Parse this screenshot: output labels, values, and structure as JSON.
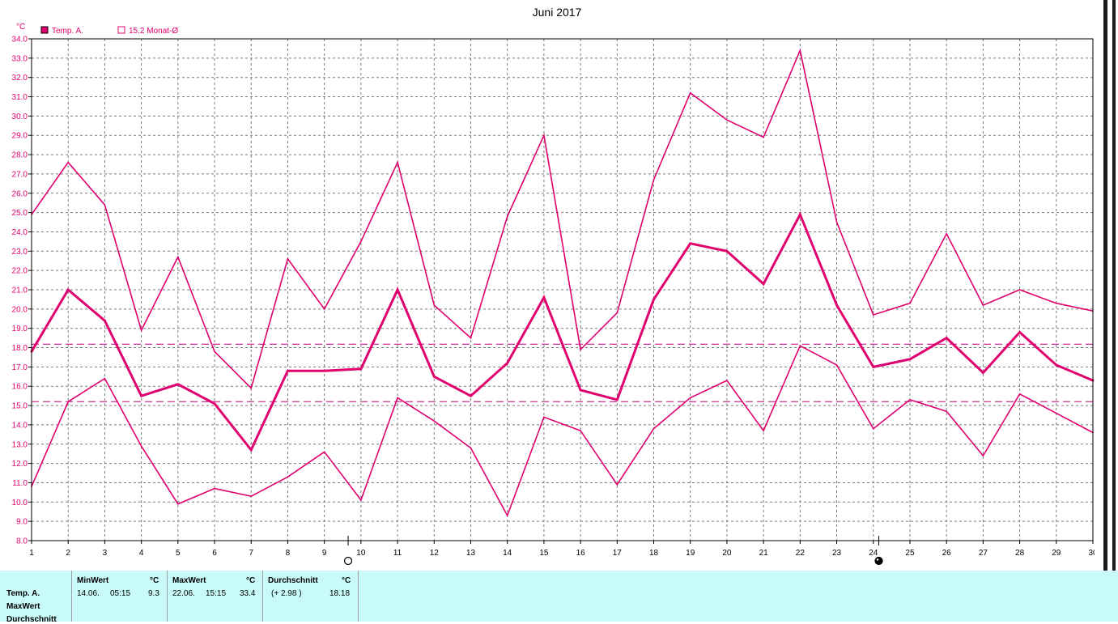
{
  "chart_data": {
    "type": "line",
    "title": "Juni 2017",
    "ylabel": "°C",
    "xlim": [
      1,
      30
    ],
    "ylim": [
      8.0,
      34.0
    ],
    "y_tick_step": 1.0,
    "grid": true,
    "x": [
      1,
      2,
      3,
      4,
      5,
      6,
      7,
      8,
      9,
      10,
      11,
      12,
      13,
      14,
      15,
      16,
      17,
      18,
      19,
      20,
      21,
      22,
      23,
      24,
      25,
      26,
      27,
      28,
      29,
      30
    ],
    "x_tick_labels": [
      "1",
      "2",
      "3",
      "4",
      "5",
      "6",
      "7",
      "8",
      "9",
      "10",
      "11",
      "12",
      "13",
      "14",
      "15",
      "16",
      "17",
      "18",
      "19",
      "20",
      "21",
      "22",
      "23",
      "24",
      "25",
      "26",
      "27",
      "28",
      "29",
      "30"
    ],
    "legend": [
      {
        "label": "Temp. A.",
        "color": "#e0006e",
        "filled": true
      },
      {
        "label": "15.2 Monat-Ø",
        "color": "#e0006e",
        "filled": false
      }
    ],
    "series": [
      {
        "role": "max",
        "color": "#e0006e",
        "values": [
          24.9,
          27.6,
          25.4,
          18.9,
          22.7,
          17.8,
          15.9,
          22.6,
          20.0,
          23.5,
          27.6,
          20.2,
          18.5,
          24.8,
          29.0,
          17.9,
          19.8,
          26.7,
          31.2,
          29.8,
          28.9,
          33.4,
          24.5,
          19.7,
          20.3,
          23.9,
          20.2,
          21.0,
          20.3,
          19.9
        ]
      },
      {
        "role": "avg",
        "color": "#e0006e",
        "values": [
          17.8,
          21.0,
          19.4,
          15.5,
          16.1,
          15.1,
          12.7,
          16.8,
          16.8,
          16.9,
          21.0,
          16.5,
          15.5,
          17.2,
          20.6,
          15.8,
          15.3,
          20.5,
          23.4,
          23.0,
          21.3,
          24.9,
          20.2,
          17.0,
          17.4,
          18.5,
          16.7,
          18.8,
          17.1,
          16.3
        ]
      },
      {
        "role": "min",
        "color": "#e0006e",
        "values": [
          10.8,
          15.2,
          16.4,
          12.9,
          9.9,
          10.7,
          10.3,
          11.3,
          12.6,
          10.1,
          15.4,
          14.2,
          12.8,
          9.3,
          14.4,
          13.7,
          10.9,
          13.8,
          15.4,
          16.3,
          13.7,
          18.1,
          17.1,
          13.8,
          15.3,
          14.7,
          12.4,
          15.6,
          14.6,
          13.6
        ]
      }
    ],
    "reference_lines": [
      {
        "value": 18.18,
        "style": "dashed",
        "color": "#c0007a"
      },
      {
        "value": 15.2,
        "style": "dashed",
        "color": "#c0007a"
      }
    ],
    "moon_markers": [
      {
        "x": 9.65,
        "phase": "full"
      },
      {
        "x": 24.15,
        "phase": "new"
      }
    ]
  },
  "stats": {
    "rows": [
      "Temp. A.",
      "MaxWert",
      "Durchschnitt"
    ],
    "min": {
      "header": "MinWert",
      "unit": "°C",
      "date": "14.06.",
      "time": "05:15",
      "value": "9.3"
    },
    "max": {
      "header": "MaxWert",
      "unit": "°C",
      "date": "22.06.",
      "time": "15:15",
      "value": "33.4"
    },
    "avg": {
      "header": "Durchschnitt",
      "unit": "°C",
      "delta": "(+ 2.98 )",
      "value": "18.18"
    }
  }
}
